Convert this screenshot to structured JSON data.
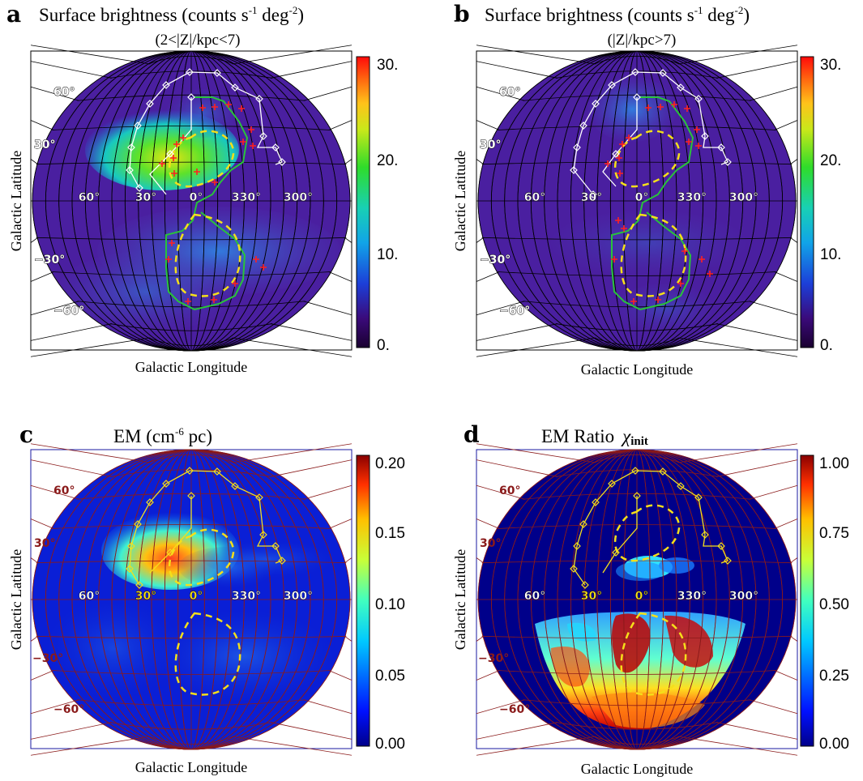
{
  "chart_data": [
    {
      "type": "heatmap",
      "projection": "aitoff-galactic",
      "panel": "a",
      "title": "Surface brightness (counts s",
      "title_sup1": "-1",
      "title_mid": " deg",
      "title_sup2": "-2",
      "title_end": ")",
      "subtitle": "(2<|Z|/kpc<7)",
      "xlabel": "Galactic Longitude",
      "ylabel": "Galactic Latitude",
      "longitude_ticks": [
        "60°",
        "30°",
        "0°",
        "330°",
        "300°"
      ],
      "latitude_ticks": [
        "60°",
        "30°",
        "−30°",
        "−60°"
      ],
      "colorbar": {
        "ticks": [
          "30.",
          "20.",
          "10.",
          "0."
        ],
        "range": [
          0,
          30
        ],
        "colormap": "rainbow"
      },
      "grid": true,
      "overlays": [
        "white diamond contour",
        "green contour",
        "yellow dashed contour",
        "red plus markers"
      ],
      "background_value": 3
    },
    {
      "type": "heatmap",
      "projection": "aitoff-galactic",
      "panel": "b",
      "title": "Surface brightness (counts s",
      "title_sup1": "-1",
      "title_mid": " deg",
      "title_sup2": "-2",
      "title_end": ")",
      "subtitle": "(|Z|/kpc>7)",
      "xlabel": "Galactic Longitude",
      "ylabel": "Galactic Latitude",
      "longitude_ticks": [
        "60°",
        "30°",
        "0°",
        "330°",
        "300°"
      ],
      "latitude_ticks": [
        "60°",
        "30°",
        "−30°",
        "−60°"
      ],
      "colorbar": {
        "ticks": [
          "30.",
          "20.",
          "10.",
          "0."
        ],
        "range": [
          0,
          30
        ],
        "colormap": "rainbow"
      },
      "grid": true,
      "overlays": [
        "white diamond contour",
        "green contour",
        "yellow dashed contour",
        "red plus markers"
      ],
      "background_value": 2
    },
    {
      "type": "heatmap",
      "projection": "aitoff-galactic",
      "panel": "c",
      "title": "EM (cm",
      "title_sup1": "-6",
      "title_end": " pc)",
      "xlabel": "Galactic Longitude",
      "ylabel": "Galactic Latitude",
      "longitude_ticks": [
        "60°",
        "30°",
        "0°",
        "330°",
        "300°"
      ],
      "latitude_ticks": [
        "60°",
        "30°",
        "−30°",
        "−60°"
      ],
      "colorbar": {
        "ticks": [
          "0.20",
          "0.15",
          "0.10",
          "0.05",
          "0.00"
        ],
        "range": [
          0,
          0.2
        ],
        "colormap": "jet"
      },
      "grid": true,
      "overlays": [
        "yellow diamond contour",
        "yellow dashed contour"
      ],
      "background_value": 0.02
    },
    {
      "type": "heatmap",
      "projection": "aitoff-galactic",
      "panel": "d",
      "title": "EM Ratio",
      "title_symbol": "χ",
      "title_sub": "init",
      "xlabel": "Galactic Longitude",
      "ylabel": "Galactic Latitude",
      "longitude_ticks": [
        "60°",
        "30°",
        "0°",
        "330°",
        "300°"
      ],
      "latitude_ticks": [
        "60°",
        "30°",
        "−30°",
        "−60°"
      ],
      "colorbar": {
        "ticks": [
          "1.00",
          "0.75",
          "0.50",
          "0.25",
          "0.00"
        ],
        "range": [
          0,
          1
        ],
        "colormap": "jet"
      },
      "grid": true,
      "overlays": [
        "yellow diamond contour",
        "yellow dashed contour"
      ],
      "background_value": 0
    }
  ],
  "colors": {
    "panel_bg_ab": "#4a1fa0",
    "panel_bg_cd": "#0a1fd6",
    "grid_ab": "#000000",
    "grid_cd": "#8a1a1a",
    "contour_white": "#ffffff",
    "contour_green": "#29c33a",
    "contour_yellow": "#f5df1a",
    "marker_red": "#ff2020"
  }
}
